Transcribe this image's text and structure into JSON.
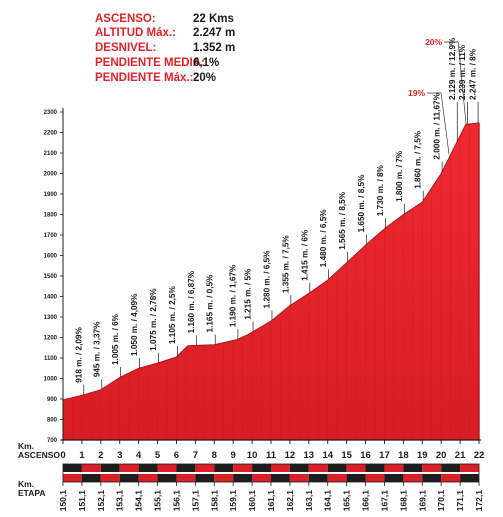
{
  "info": {
    "rows": [
      {
        "label": "ASCENSO:",
        "value": "22 Kms"
      },
      {
        "label": "ALTITUD Máx.:",
        "value": "2.247 m"
      },
      {
        "label": "DESNIVEL:",
        "value": "1.352 m"
      },
      {
        "label": "PENDIENTE MEDIA:",
        "value": "6,1%"
      },
      {
        "label": "PENDIENTE Máx.:",
        "value": "20%"
      }
    ]
  },
  "colors": {
    "profile_fill": "#e8232b",
    "profile_dark": "#b3151c",
    "accent_text": "#e3232a",
    "ink": "#1b1b1b",
    "band_red": "#d92027",
    "band_black": "#1d1d1d"
  },
  "chart_data": {
    "type": "area",
    "xlabel": "Km. ASCENSO",
    "x2label": "Km. ETAPA",
    "y_ticks": [
      700,
      800,
      900,
      1000,
      1100,
      1200,
      1300,
      1400,
      1500,
      1600,
      1700,
      1800,
      1900,
      2000,
      2100,
      2200,
      2300
    ],
    "ylim": [
      700,
      2300
    ],
    "x_ticks": [
      0,
      1,
      2,
      3,
      4,
      5,
      6,
      7,
      8,
      9,
      10,
      11,
      12,
      13,
      14,
      15,
      16,
      17,
      18,
      19,
      20,
      21,
      22
    ],
    "xlim": [
      0,
      22
    ],
    "stage_km": [
      "150,1",
      "151,1",
      "152,1",
      "153,1",
      "154,1",
      "155,1",
      "156,1",
      "157,1",
      "158,1",
      "159,1",
      "160,1",
      "161,1",
      "162,1",
      "163,1",
      "164,1",
      "165,1",
      "166,1",
      "167,1",
      "168,1",
      "169,1",
      "170,1",
      "171,1",
      "172,1"
    ],
    "profile": [
      {
        "x": 0,
        "y": 895
      },
      {
        "x": 1,
        "y": 918
      },
      {
        "x": 2,
        "y": 945
      },
      {
        "x": 3,
        "y": 1005
      },
      {
        "x": 4,
        "y": 1050
      },
      {
        "x": 5,
        "y": 1075
      },
      {
        "x": 6,
        "y": 1105
      },
      {
        "x": 6.6,
        "y": 1160
      },
      {
        "x": 8,
        "y": 1165
      },
      {
        "x": 9.2,
        "y": 1190
      },
      {
        "x": 9.8,
        "y": 1215
      },
      {
        "x": 11,
        "y": 1280
      },
      {
        "x": 12,
        "y": 1355
      },
      {
        "x": 13,
        "y": 1415
      },
      {
        "x": 14,
        "y": 1480
      },
      {
        "x": 15,
        "y": 1565
      },
      {
        "x": 16,
        "y": 1650
      },
      {
        "x": 17,
        "y": 1730
      },
      {
        "x": 18,
        "y": 1800
      },
      {
        "x": 19,
        "y": 1860
      },
      {
        "x": 20,
        "y": 2000
      },
      {
        "x": 20.7,
        "y": 2129
      },
      {
        "x": 21.3,
        "y": 2239
      },
      {
        "x": 22,
        "y": 2247
      }
    ],
    "annotations": [
      {
        "x": 1.1,
        "text": "918 m. / 2,09%"
      },
      {
        "x": 2.05,
        "text": "945 m. / 3,37%"
      },
      {
        "x": 3.05,
        "text": "1.005 m. / 6%"
      },
      {
        "x": 4.05,
        "text": "1.050 m. / 4,09%"
      },
      {
        "x": 5.05,
        "text": "1.075 m. / 2,78%"
      },
      {
        "x": 6.05,
        "text": "1.105 m. / 2,5%"
      },
      {
        "x": 7.05,
        "text": "1.160 m. / 6,87%"
      },
      {
        "x": 8.05,
        "text": "1.165 m. / 0,5%"
      },
      {
        "x": 9.25,
        "text": "1.190 m. / 1,67%"
      },
      {
        "x": 10.05,
        "text": "1.215 m. / 5%"
      },
      {
        "x": 11.05,
        "text": "1.280 m. / 6,5%"
      },
      {
        "x": 12.05,
        "text": "1.355 m. / 7,5%"
      },
      {
        "x": 13.05,
        "text": "1.415 m. / 6%"
      },
      {
        "x": 14.05,
        "text": "1.480 m. / 6,5%"
      },
      {
        "x": 15.05,
        "text": "1.565 m. / 8,5%"
      },
      {
        "x": 16.05,
        "text": "1.650 m. / 8,5%"
      },
      {
        "x": 17.05,
        "text": "1.730 m. / 8%"
      },
      {
        "x": 18.05,
        "text": "1.800 m. / 7%"
      },
      {
        "x": 19.05,
        "text": "1.860 m. / 7,5%"
      },
      {
        "x": 20.05,
        "text": "2.000 m. / 11,67%"
      },
      {
        "x": 20.85,
        "text": "2.129 m. / 12,9%"
      },
      {
        "x": 21.4,
        "text": "2.239 m. / 11%"
      },
      {
        "x": 21.95,
        "text": "2.247 m. / 8%"
      }
    ],
    "gradient_callouts": [
      {
        "text": "19%",
        "x": 20.1
      },
      {
        "text": "20%",
        "x": 21.0
      }
    ]
  }
}
